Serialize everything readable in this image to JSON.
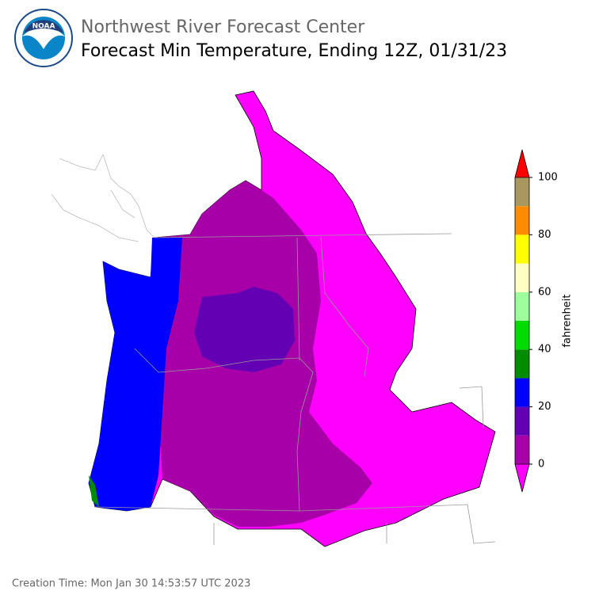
{
  "header": {
    "logo_text": "NOAA",
    "title": "Northwest River Forecast Center",
    "subtitle": "Forecast Min Temperature, Ending 12Z, 01/31/23"
  },
  "colorbar": {
    "label": "fahrenheit",
    "bounds": [
      0,
      10,
      20,
      30,
      40,
      50,
      60,
      70,
      80,
      90,
      100
    ],
    "colors": [
      "#a800a8",
      "#6400b4",
      "#0000ff",
      "#008c00",
      "#00dc00",
      "#9cff9c",
      "#ffffc4",
      "#ffff00",
      "#ff8c00",
      "#a89860"
    ],
    "under_color": "#ff00ff",
    "over_color": "#ff0000",
    "ticks": [
      0,
      20,
      40,
      60,
      80,
      100
    ]
  },
  "footer": {
    "creation_time": "Creation Time: Mon Jan 30 14:53:57 UTC 2023"
  }
}
